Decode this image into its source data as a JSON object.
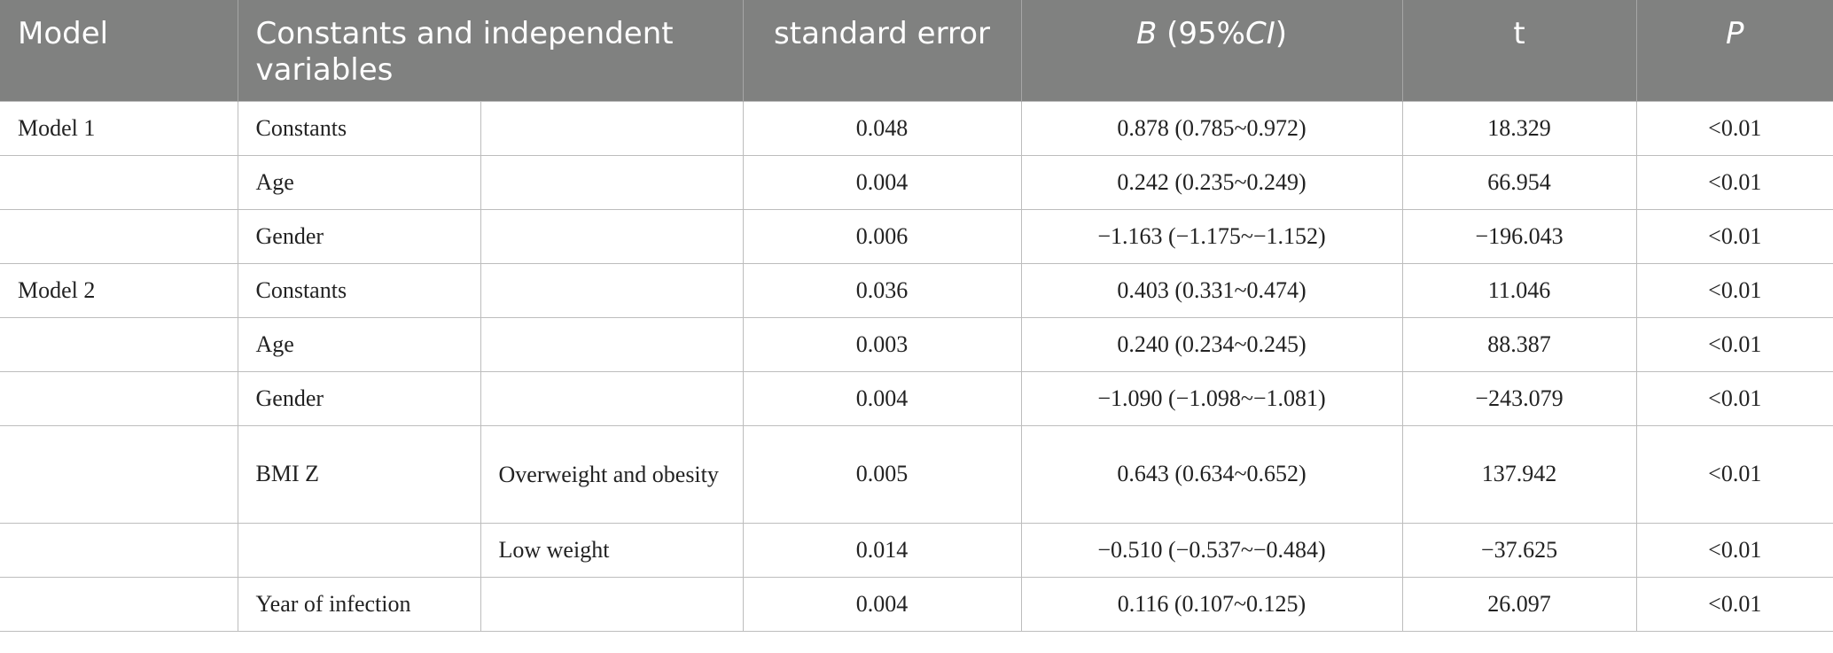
{
  "table": {
    "headers": {
      "model": "Model",
      "constants_vars": "Constants and independent variables",
      "standard_error": "standard error",
      "b_prefix": "B",
      "b_suffix": " (95%",
      "b_ci": "CI",
      "b_close": ")",
      "t": "t",
      "p": "P"
    },
    "rows": [
      {
        "model": "Model 1",
        "variable": "Constants",
        "subcategory": "",
        "standard_error": "0.048",
        "b_ci": "0.878 (0.785~0.972)",
        "t": "18.329",
        "p": "<0.01"
      },
      {
        "model": "",
        "variable": "Age",
        "subcategory": "",
        "standard_error": "0.004",
        "b_ci": "0.242 (0.235~0.249)",
        "t": "66.954",
        "p": "<0.01"
      },
      {
        "model": "",
        "variable": "Gender",
        "subcategory": "",
        "standard_error": "0.006",
        "b_ci": "−1.163 (−1.175~−1.152)",
        "t": "−196.043",
        "p": "<0.01"
      },
      {
        "model": "Model 2",
        "variable": "Constants",
        "subcategory": "",
        "standard_error": "0.036",
        "b_ci": "0.403 (0.331~0.474)",
        "t": "11.046",
        "p": "<0.01"
      },
      {
        "model": "",
        "variable": "Age",
        "subcategory": "",
        "standard_error": "0.003",
        "b_ci": "0.240 (0.234~0.245)",
        "t": "88.387",
        "p": "<0.01"
      },
      {
        "model": "",
        "variable": "Gender",
        "subcategory": "",
        "standard_error": "0.004",
        "b_ci": "−1.090 (−1.098~−1.081)",
        "t": "−243.079",
        "p": "<0.01"
      },
      {
        "model": "",
        "variable": "BMI Z",
        "subcategory": "Overweight and obesity",
        "standard_error": "0.005",
        "b_ci": "0.643 (0.634~0.652)",
        "t": "137.942",
        "p": "<0.01"
      },
      {
        "model": "",
        "variable": "",
        "subcategory": "Low weight",
        "standard_error": "0.014",
        "b_ci": "−0.510 (−0.537~−0.484)",
        "t": "−37.625",
        "p": "<0.01"
      },
      {
        "model": "",
        "variable": "Year of infection",
        "subcategory": "",
        "standard_error": "0.004",
        "b_ci": "0.116 (0.107~0.125)",
        "t": "26.097",
        "p": "<0.01"
      }
    ]
  }
}
